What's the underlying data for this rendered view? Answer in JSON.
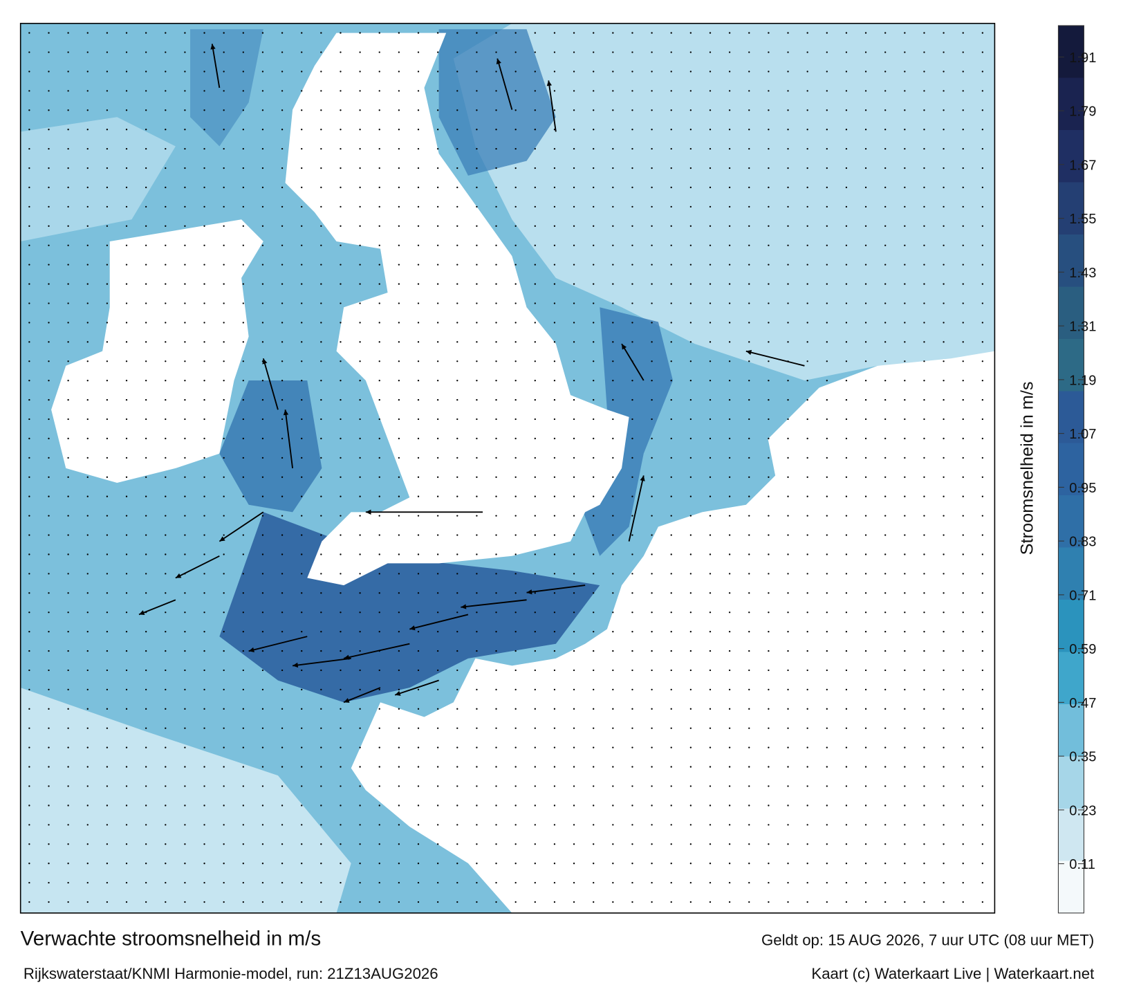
{
  "chart_data": {
    "type": "map",
    "title": "Verwachte stroomsnelheid in m/s",
    "subtitle": "Rijkswaterstaat/KNMI Harmonie-model, run: 21Z13AUG2026",
    "valid_time": "Geldt op: 15 AUG 2026, 7 uur UTC (08 uur MET)",
    "credit": "Kaart (c) Waterkaart Live | Waterkaart.net",
    "colorbar": {
      "label": "Stroomsnelheid in m/s",
      "clim": [
        0,
        1.98
      ],
      "ticks": [
        0.11,
        0.23,
        0.35,
        0.47,
        0.59,
        0.71,
        0.83,
        0.95,
        1.07,
        1.19,
        1.31,
        1.43,
        1.55,
        1.67,
        1.79,
        1.91
      ],
      "colors": [
        "#f4f9fb",
        "#cfe7f1",
        "#a6d6e8",
        "#72bedb",
        "#3fa6cb",
        "#2b93bd",
        "#2f80b0",
        "#2f6fa7",
        "#2d63a0",
        "#2c5a97",
        "#2d6a86",
        "#2a5e80",
        "#274f7f",
        "#243f73",
        "#1f2f63",
        "#1a2350",
        "#141a3c"
      ]
    }
  }
}
